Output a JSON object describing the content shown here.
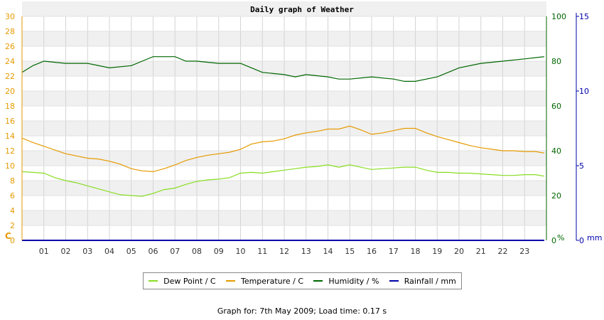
{
  "chart_data": {
    "type": "line",
    "title": "Daily graph of Weather",
    "x_tick_labels": [
      "01",
      "02",
      "03",
      "04",
      "05",
      "06",
      "07",
      "08",
      "09",
      "10",
      "11",
      "12",
      "13",
      "14",
      "15",
      "16",
      "17",
      "18",
      "19",
      "20",
      "21",
      "22",
      "23"
    ],
    "x_range": [
      0,
      24
    ],
    "left_axis": {
      "unit_label": "C",
      "range": [
        0,
        30
      ],
      "ticks": [
        "0",
        "2",
        "4",
        "6",
        "8",
        "10",
        "12",
        "14",
        "16",
        "18",
        "20",
        "22",
        "24",
        "26",
        "28",
        "30"
      ],
      "color": "#e69a00"
    },
    "right_axis_humidity": {
      "unit_label": "%",
      "range": [
        0,
        100
      ],
      "ticks": [
        "0",
        "20",
        "40",
        "60",
        "80",
        "100"
      ],
      "color": "#006600"
    },
    "right_axis_rain": {
      "unit_label": "mm",
      "range": [
        0,
        15
      ],
      "ticks": [
        "0",
        "5",
        "10",
        "15"
      ],
      "color": "#0000aa"
    },
    "series": [
      {
        "name": "Dew Point / C",
        "axis": "left",
        "color": "#88dd22",
        "points": [
          [
            0,
            9.2
          ],
          [
            1,
            9.0
          ],
          [
            1.5,
            8.4
          ],
          [
            2,
            8.0
          ],
          [
            2.5,
            7.7
          ],
          [
            3,
            7.3
          ],
          [
            3.5,
            6.9
          ],
          [
            4,
            6.5
          ],
          [
            4.5,
            6.1
          ],
          [
            5,
            6.0
          ],
          [
            5.5,
            5.9
          ],
          [
            6,
            6.3
          ],
          [
            6.5,
            6.8
          ],
          [
            7,
            7.0
          ],
          [
            7.5,
            7.5
          ],
          [
            8,
            7.9
          ],
          [
            8.5,
            8.1
          ],
          [
            9,
            8.2
          ],
          [
            9.5,
            8.4
          ],
          [
            10,
            9.0
          ],
          [
            10.5,
            9.1
          ],
          [
            11,
            9.0
          ],
          [
            11.5,
            9.2
          ],
          [
            12,
            9.4
          ],
          [
            12.5,
            9.6
          ],
          [
            13,
            9.8
          ],
          [
            13.5,
            9.9
          ],
          [
            14,
            10.1
          ],
          [
            14.5,
            9.8
          ],
          [
            15,
            10.1
          ],
          [
            15.5,
            9.8
          ],
          [
            16,
            9.5
          ],
          [
            16.5,
            9.6
          ],
          [
            17,
            9.7
          ],
          [
            17.5,
            9.8
          ],
          [
            18,
            9.8
          ],
          [
            18.5,
            9.4
          ],
          [
            19,
            9.1
          ],
          [
            19.5,
            9.1
          ],
          [
            20,
            9.0
          ],
          [
            20.5,
            9.0
          ],
          [
            21,
            8.9
          ],
          [
            21.5,
            8.8
          ],
          [
            22,
            8.7
          ],
          [
            22.5,
            8.7
          ],
          [
            23,
            8.8
          ],
          [
            23.5,
            8.8
          ],
          [
            23.9,
            8.6
          ]
        ]
      },
      {
        "name": "Temperature / C",
        "axis": "left",
        "color": "#e69a00",
        "points": [
          [
            0,
            13.7
          ],
          [
            0.5,
            13.1
          ],
          [
            1,
            12.6
          ],
          [
            1.5,
            12.1
          ],
          [
            2,
            11.6
          ],
          [
            2.5,
            11.3
          ],
          [
            3,
            11.0
          ],
          [
            3.5,
            10.9
          ],
          [
            4,
            10.6
          ],
          [
            4.5,
            10.2
          ],
          [
            5,
            9.6
          ],
          [
            5.5,
            9.3
          ],
          [
            6,
            9.2
          ],
          [
            6.5,
            9.6
          ],
          [
            7,
            10.1
          ],
          [
            7.5,
            10.7
          ],
          [
            8,
            11.1
          ],
          [
            8.5,
            11.4
          ],
          [
            9,
            11.6
          ],
          [
            9.5,
            11.8
          ],
          [
            10,
            12.2
          ],
          [
            10.5,
            12.9
          ],
          [
            11,
            13.2
          ],
          [
            11.5,
            13.3
          ],
          [
            12,
            13.6
          ],
          [
            12.5,
            14.1
          ],
          [
            13,
            14.4
          ],
          [
            13.5,
            14.6
          ],
          [
            14,
            14.9
          ],
          [
            14.5,
            14.9
          ],
          [
            15,
            15.3
          ],
          [
            15.5,
            14.8
          ],
          [
            16,
            14.2
          ],
          [
            16.5,
            14.4
          ],
          [
            17,
            14.7
          ],
          [
            17.5,
            15.0
          ],
          [
            18,
            15.0
          ],
          [
            18.5,
            14.4
          ],
          [
            19,
            13.9
          ],
          [
            19.5,
            13.5
          ],
          [
            20,
            13.1
          ],
          [
            20.5,
            12.7
          ],
          [
            21,
            12.4
          ],
          [
            21.5,
            12.2
          ],
          [
            22,
            12.0
          ],
          [
            22.5,
            12.0
          ],
          [
            23,
            11.9
          ],
          [
            23.5,
            11.9
          ],
          [
            23.9,
            11.7
          ]
        ]
      },
      {
        "name": "Humidity / %",
        "axis": "right_humidity",
        "color": "#006600",
        "points": [
          [
            0,
            75
          ],
          [
            0.5,
            78
          ],
          [
            1,
            80
          ],
          [
            2,
            79
          ],
          [
            3,
            79
          ],
          [
            4,
            77
          ],
          [
            5,
            78
          ],
          [
            5.5,
            80
          ],
          [
            6,
            82
          ],
          [
            7,
            82
          ],
          [
            7.5,
            80
          ],
          [
            8,
            80
          ],
          [
            9,
            79
          ],
          [
            10,
            79
          ],
          [
            10.5,
            77
          ],
          [
            11,
            75
          ],
          [
            12,
            74
          ],
          [
            12.5,
            73
          ],
          [
            13,
            74
          ],
          [
            14,
            73
          ],
          [
            14.5,
            72
          ],
          [
            15,
            72
          ],
          [
            16,
            73
          ],
          [
            17,
            72
          ],
          [
            17.5,
            71
          ],
          [
            18,
            71
          ],
          [
            19,
            73
          ],
          [
            19.5,
            75
          ],
          [
            20,
            77
          ],
          [
            21,
            79
          ],
          [
            22,
            80
          ],
          [
            23,
            81
          ],
          [
            23.9,
            82
          ]
        ]
      },
      {
        "name": "Rainfall / mm",
        "axis": "right_rain",
        "color": "#0000aa",
        "points": [
          [
            0,
            0
          ],
          [
            23.9,
            0
          ]
        ]
      }
    ]
  },
  "footer": "Graph for: 7th May 2009; Load time: 0.17 s"
}
